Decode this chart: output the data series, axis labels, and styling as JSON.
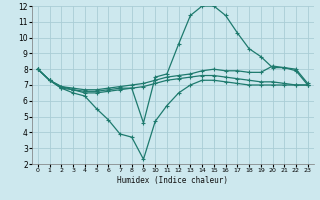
{
  "xlabel": "Humidex (Indice chaleur)",
  "xlim": [
    -0.5,
    23.5
  ],
  "ylim": [
    2,
    12
  ],
  "xticks": [
    0,
    1,
    2,
    3,
    4,
    5,
    6,
    7,
    8,
    9,
    10,
    11,
    12,
    13,
    14,
    15,
    16,
    17,
    18,
    19,
    20,
    21,
    22,
    23
  ],
  "yticks": [
    2,
    3,
    4,
    5,
    6,
    7,
    8,
    9,
    10,
    11,
    12
  ],
  "background_color": "#cde8ee",
  "grid_color": "#aacdd6",
  "line_color": "#1e7a6e",
  "lines": [
    {
      "x": [
        0,
        1,
        2,
        3,
        4,
        5,
        6,
        7,
        8,
        9,
        10,
        11,
        12,
        13,
        14,
        15,
        16,
        17,
        18,
        19,
        20,
        21,
        22,
        23
      ],
      "y": [
        8.0,
        7.3,
        6.8,
        6.7,
        6.5,
        6.5,
        6.6,
        6.7,
        6.8,
        4.6,
        7.5,
        7.7,
        9.6,
        11.4,
        12.0,
        12.0,
        11.4,
        10.3,
        9.3,
        8.8,
        8.1,
        8.1,
        7.9,
        7.0
      ]
    },
    {
      "x": [
        0,
        1,
        2,
        3,
        4,
        5,
        6,
        7,
        8,
        9,
        10,
        11,
        12,
        13,
        14,
        15,
        16,
        17,
        18,
        19,
        20,
        21,
        22,
        23
      ],
      "y": [
        8.0,
        7.3,
        6.8,
        6.5,
        6.3,
        5.5,
        4.8,
        3.9,
        3.7,
        2.3,
        4.7,
        5.7,
        6.5,
        7.0,
        7.3,
        7.3,
        7.2,
        7.1,
        7.0,
        7.0,
        7.0,
        7.0,
        7.0,
        7.0
      ]
    },
    {
      "x": [
        0,
        1,
        2,
        3,
        4,
        5,
        6,
        7,
        8,
        9,
        10,
        11,
        12,
        13,
        14,
        15,
        16,
        17,
        18,
        19,
        20,
        21,
        22,
        23
      ],
      "y": [
        8.0,
        7.3,
        6.9,
        6.8,
        6.7,
        6.7,
        6.8,
        6.9,
        7.0,
        7.1,
        7.3,
        7.5,
        7.6,
        7.7,
        7.9,
        8.0,
        7.9,
        7.9,
        7.8,
        7.8,
        8.2,
        8.1,
        8.0,
        7.1
      ]
    },
    {
      "x": [
        0,
        1,
        2,
        3,
        4,
        5,
        6,
        7,
        8,
        9,
        10,
        11,
        12,
        13,
        14,
        15,
        16,
        17,
        18,
        19,
        20,
        21,
        22,
        23
      ],
      "y": [
        8.0,
        7.3,
        6.9,
        6.7,
        6.6,
        6.6,
        6.7,
        6.8,
        6.8,
        6.9,
        7.1,
        7.3,
        7.4,
        7.5,
        7.6,
        7.6,
        7.5,
        7.4,
        7.3,
        7.2,
        7.2,
        7.1,
        7.0,
        7.0
      ]
    }
  ]
}
